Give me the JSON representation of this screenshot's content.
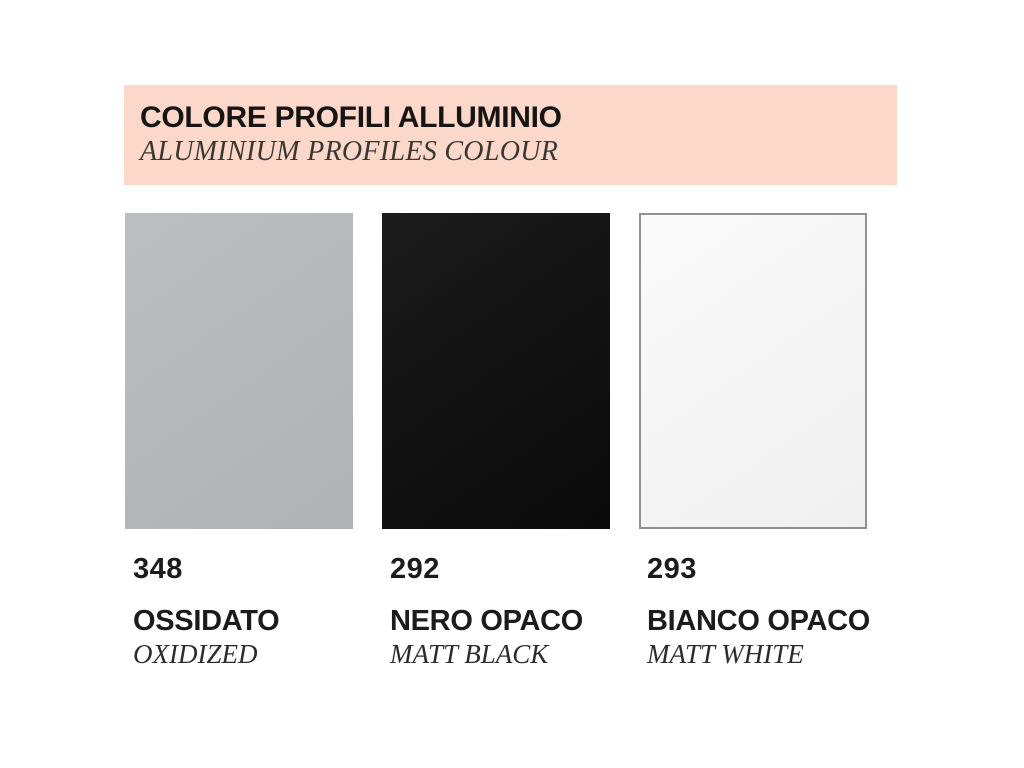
{
  "page_background": "#ffffff",
  "header": {
    "title": "COLORE PROFILI ALLUMINIO",
    "subtitle": "ALUMINIUM PROFILES COLOUR",
    "background": "#fbd8c9"
  },
  "swatches": [
    {
      "code": "348",
      "name": "OSSIDATO",
      "translation": "OXIDIZED",
      "color": "#b7b9bb",
      "border_color": null
    },
    {
      "code": "292",
      "name": "NERO OPACO",
      "translation": "MATT BLACK",
      "color": "#0a0a0a",
      "border_color": null
    },
    {
      "code": "293",
      "name": "BIANCO OPACO",
      "translation": "MATT WHITE",
      "color": "#fafafa",
      "border_color": "#8f9193"
    }
  ]
}
